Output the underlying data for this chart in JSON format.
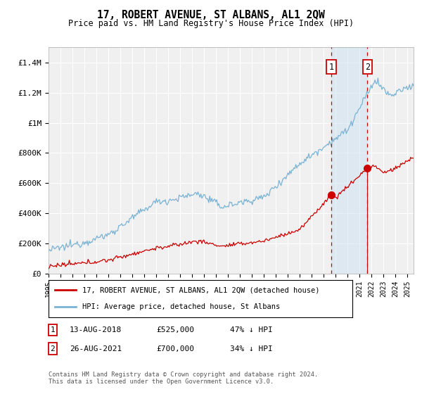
{
  "title": "17, ROBERT AVENUE, ST ALBANS, AL1 2QW",
  "subtitle": "Price paid vs. HM Land Registry's House Price Index (HPI)",
  "legend_line1": "17, ROBERT AVENUE, ST ALBANS, AL1 2QW (detached house)",
  "legend_line2": "HPI: Average price, detached house, St Albans",
  "annotation1_label": "1",
  "annotation1_date": "13-AUG-2018",
  "annotation1_price": "£525,000",
  "annotation1_hpi": "47% ↓ HPI",
  "annotation1_year": 2018.62,
  "annotation1_value": 525000,
  "annotation2_label": "2",
  "annotation2_date": "26-AUG-2021",
  "annotation2_price": "£700,000",
  "annotation2_hpi": "34% ↓ HPI",
  "annotation2_year": 2021.65,
  "annotation2_value": 700000,
  "footer": "Contains HM Land Registry data © Crown copyright and database right 2024.\nThis data is licensed under the Open Government Licence v3.0.",
  "hpi_color": "#7ab3d4",
  "price_color": "#cc0000",
  "background_color": "#f0f0f0",
  "shaded_region_color": "#c8dff0",
  "ylim": [
    0,
    1500000
  ],
  "yticks": [
    0,
    200000,
    400000,
    600000,
    800000,
    1000000,
    1200000,
    1400000
  ],
  "ytick_labels": [
    "£0",
    "£200K",
    "£400K",
    "£600K",
    "£800K",
    "£1M",
    "£1.2M",
    "£1.4M"
  ],
  "xmin": 1995,
  "xmax": 2025.5
}
